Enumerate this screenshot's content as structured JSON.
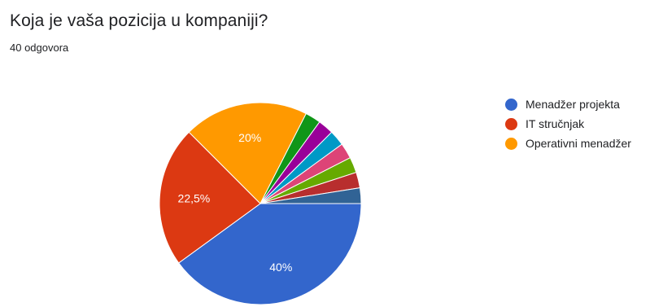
{
  "form": {
    "question": "Koja je vaša pozicija u kompaniji?",
    "responses": "40 odgovora"
  },
  "chart_data": {
    "type": "pie",
    "title": "Koja je vaša pozicija u kompaniji?",
    "legend_position": "right",
    "slices": [
      {
        "name": "Menadžer projekta",
        "percent": 40,
        "label": "40%",
        "color": "#3366cc",
        "in_legend": true
      },
      {
        "name": "IT stručnjak",
        "percent": 22.5,
        "label": "22,5%",
        "color": "#dc3912",
        "in_legend": true
      },
      {
        "name": "Operativni menadžer",
        "percent": 20,
        "label": "20%",
        "color": "#ff9900",
        "in_legend": true
      },
      {
        "name": "",
        "percent": 2.5,
        "label": "",
        "color": "#109618",
        "in_legend": false
      },
      {
        "name": "",
        "percent": 2.5,
        "label": "",
        "color": "#990099",
        "in_legend": false
      },
      {
        "name": "",
        "percent": 2.5,
        "label": "",
        "color": "#0099c6",
        "in_legend": false
      },
      {
        "name": "",
        "percent": 2.5,
        "label": "",
        "color": "#dd4477",
        "in_legend": false
      },
      {
        "name": "",
        "percent": 2.5,
        "label": "",
        "color": "#66aa00",
        "in_legend": false
      },
      {
        "name": "",
        "percent": 2.5,
        "label": "",
        "color": "#b82e2e",
        "in_legend": false
      },
      {
        "name": "",
        "percent": 2.5,
        "label": "",
        "color": "#316395",
        "in_legend": false
      }
    ]
  }
}
